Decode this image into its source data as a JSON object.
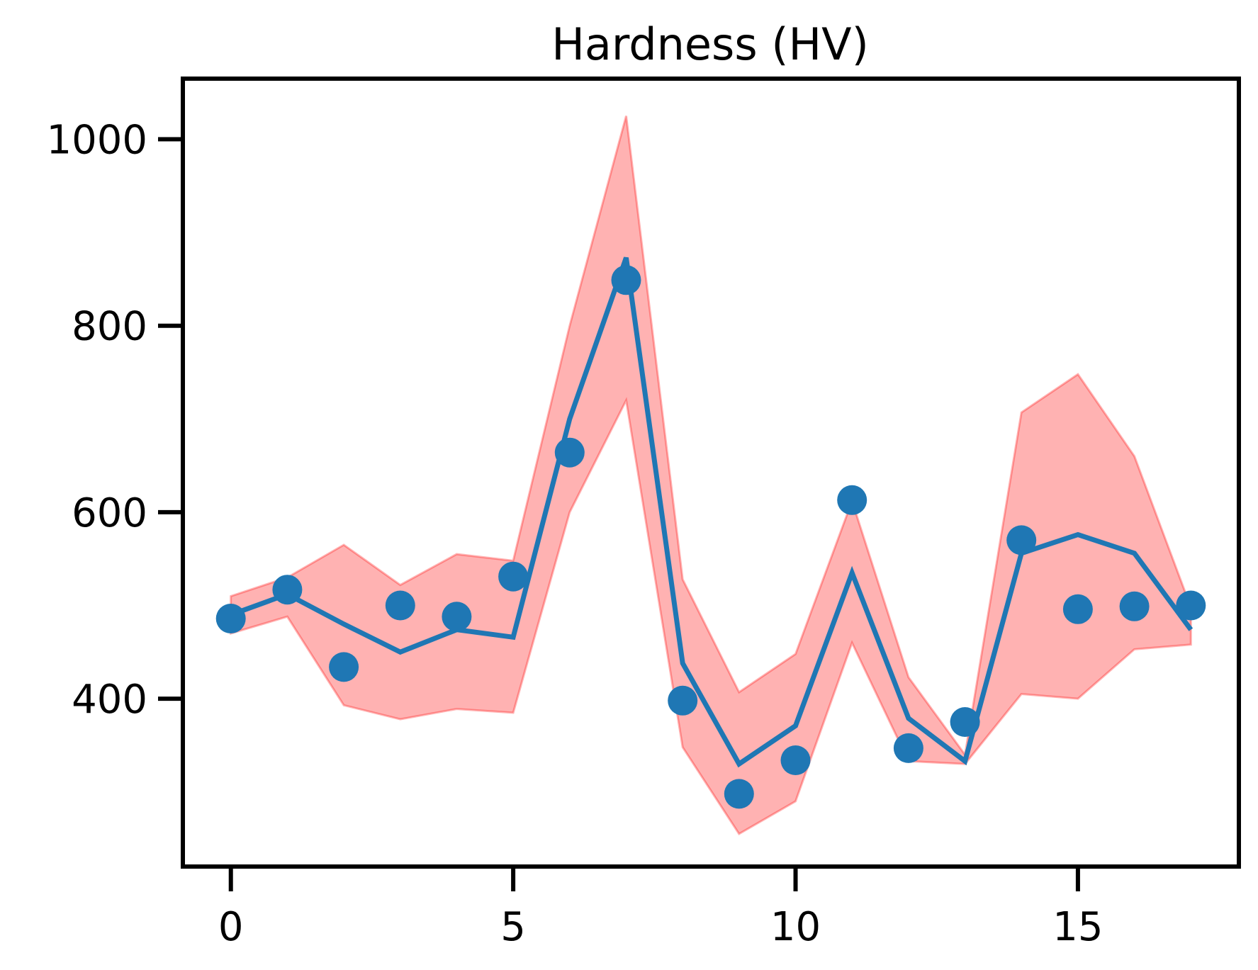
{
  "chart_data": {
    "type": "line",
    "title": "Hardness (HV)",
    "xlabel": "",
    "ylabel": "",
    "xlim": [
      -0.85,
      17.85
    ],
    "ylim": [
      220,
      1065
    ],
    "x_ticks": [
      0,
      5,
      10,
      15
    ],
    "y_ticks": [
      400,
      600,
      800,
      1000
    ],
    "x_tick_labels": [
      "0",
      "5",
      "10",
      "15"
    ],
    "y_tick_labels": [
      "400",
      "600",
      "800",
      "1000"
    ],
    "grid": false,
    "legend": "none",
    "x": [
      0,
      1,
      2,
      3,
      4,
      5,
      6,
      7,
      8,
      9,
      10,
      11,
      12,
      13,
      14,
      15,
      16,
      17
    ],
    "series": [
      {
        "kind": "band",
        "color": "#ff0000",
        "upper": [
          510,
          530,
          565,
          522,
          555,
          548,
          800,
          1025,
          528,
          407,
          448,
          612,
          423,
          340,
          707,
          748,
          660,
          498
        ],
        "lower": [
          470,
          488,
          393,
          378,
          389,
          385,
          600,
          720,
          348,
          255,
          290,
          460,
          333,
          330,
          405,
          400,
          453,
          458
        ]
      },
      {
        "kind": "line",
        "color": "#1f77b4",
        "values": [
          490,
          512,
          480,
          450,
          474,
          466,
          700,
          873,
          438,
          330,
          371,
          535,
          379,
          333,
          556,
          576,
          556,
          474
        ]
      },
      {
        "kind": "scatter",
        "color": "#1f77b4",
        "values": [
          486,
          517,
          434,
          500,
          488,
          531,
          664,
          849,
          398,
          298,
          334,
          613,
          347,
          375,
          570,
          496,
          499,
          500
        ]
      }
    ]
  }
}
